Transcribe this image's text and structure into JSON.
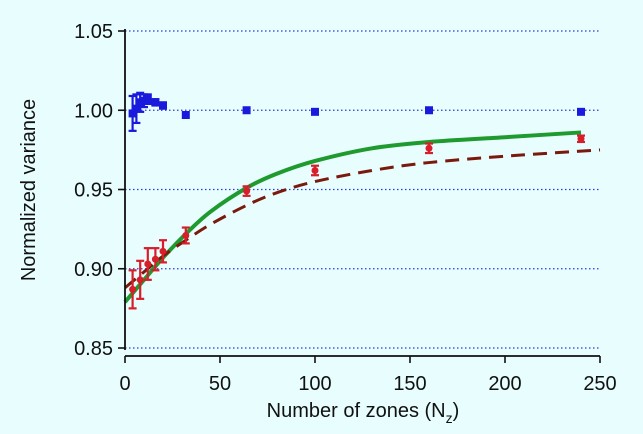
{
  "chart_data": {
    "type": "scatter",
    "xlabel": "Number of zones (N",
    "xlabel_sub": "z",
    "xlabel_close": ")",
    "ylabel": "Normalized variance",
    "xlim": [
      0,
      250
    ],
    "ylim": [
      0.85,
      1.05
    ],
    "xticks": [
      "0",
      "50",
      "100",
      "150",
      "200",
      "250"
    ],
    "yticks": [
      "0.85",
      "0.90",
      "0.95",
      "1.00",
      "1.05"
    ],
    "grid": "horizontal-dotted",
    "series": [
      {
        "color": "#1a1adc",
        "marker": "square",
        "points": [
          {
            "x": 4,
            "y": 0.998,
            "err": 0.011
          },
          {
            "x": 6,
            "y": 1.001,
            "err": 0.009
          },
          {
            "x": 8,
            "y": 1.005,
            "err": 0.006
          },
          {
            "x": 10,
            "y": 1.006,
            "err": 0.004
          },
          {
            "x": 12,
            "y": 1.007,
            "err": 0.003
          },
          {
            "x": 16,
            "y": 1.005,
            "err": 0.002
          },
          {
            "x": 20,
            "y": 1.003,
            "err": 0.002
          },
          {
            "x": 32,
            "y": 0.997,
            "err": 0.0
          },
          {
            "x": 64,
            "y": 1.0,
            "err": 0.0
          },
          {
            "x": 100,
            "y": 0.999,
            "err": 0.0
          },
          {
            "x": 160,
            "y": 1.0,
            "err": 0.0
          },
          {
            "x": 240,
            "y": 0.999,
            "err": 0.0
          }
        ]
      },
      {
        "color": "#d81e2a",
        "marker": "circle",
        "points": [
          {
            "x": 4,
            "y": 0.887,
            "err": 0.012
          },
          {
            "x": 8,
            "y": 0.893,
            "err": 0.012
          },
          {
            "x": 12,
            "y": 0.903,
            "err": 0.01
          },
          {
            "x": 16,
            "y": 0.906,
            "err": 0.007
          },
          {
            "x": 20,
            "y": 0.911,
            "err": 0.007
          },
          {
            "x": 32,
            "y": 0.921,
            "err": 0.005
          },
          {
            "x": 64,
            "y": 0.949,
            "err": 0.003
          },
          {
            "x": 100,
            "y": 0.962,
            "err": 0.003
          },
          {
            "x": 160,
            "y": 0.976,
            "err": 0.003
          },
          {
            "x": 240,
            "y": 0.982,
            "err": 0.002
          }
        ]
      }
    ],
    "curves": [
      {
        "color": "#1e9a2e",
        "style": "solid",
        "x": [
          0,
          10,
          20,
          32,
          45,
          64,
          80,
          100,
          130,
          160,
          200,
          240
        ],
        "y": [
          0.879,
          0.893,
          0.907,
          0.922,
          0.936,
          0.951,
          0.96,
          0.968,
          0.976,
          0.98,
          0.983,
          0.986
        ]
      },
      {
        "color": "#7a1a0c",
        "style": "dashed",
        "x": [
          0,
          10,
          20,
          32,
          45,
          64,
          80,
          100,
          130,
          160,
          200,
          250
        ],
        "y": [
          0.888,
          0.898,
          0.908,
          0.918,
          0.928,
          0.94,
          0.948,
          0.955,
          0.962,
          0.967,
          0.971,
          0.975
        ]
      }
    ]
  }
}
